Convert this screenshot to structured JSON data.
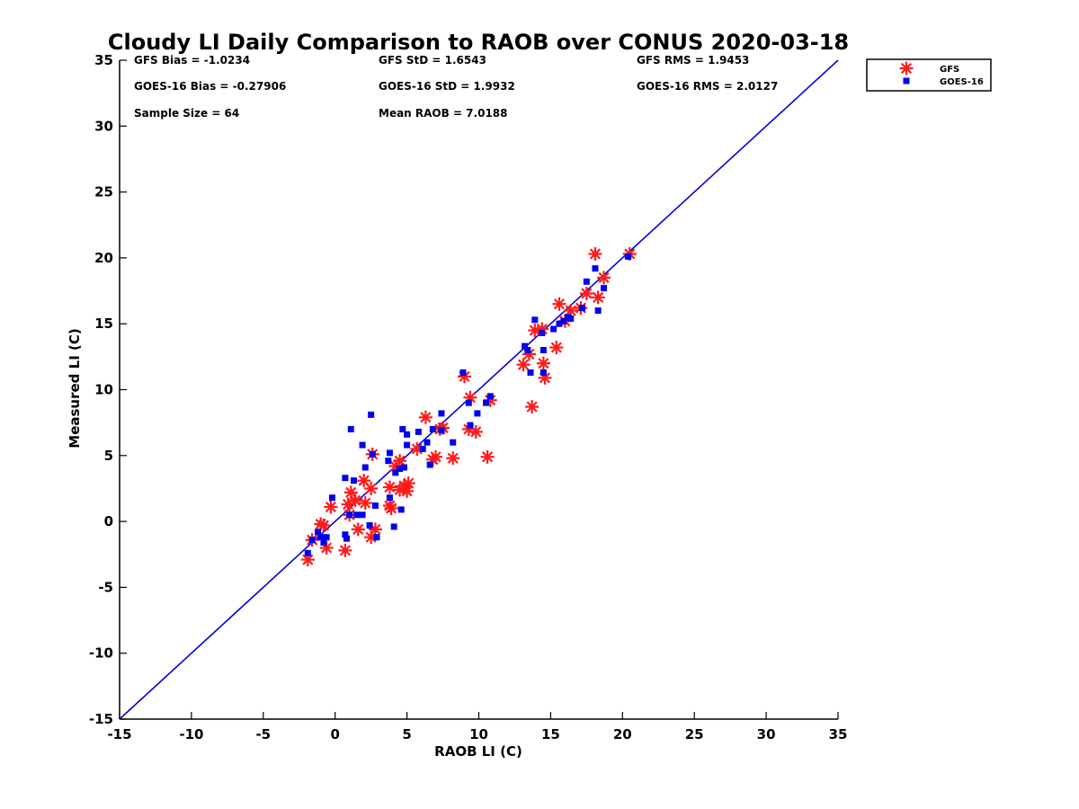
{
  "chart_data": {
    "type": "scatter",
    "title": "Cloudy LI Daily Comparison to RAOB over CONUS 2020-03-18",
    "xlabel": "RAOB LI (C)",
    "ylabel": "Measured LI (C)",
    "xlim": [
      -15,
      35
    ],
    "ylim": [
      -15,
      35
    ],
    "xticks": [
      -15,
      -10,
      -5,
      0,
      5,
      10,
      15,
      20,
      25,
      30,
      35
    ],
    "yticks": [
      -15,
      -10,
      -5,
      0,
      5,
      10,
      15,
      20,
      25,
      30,
      35
    ],
    "grid": false,
    "legend_position": "top-right, outside plot",
    "reference_line": {
      "from": [
        -15,
        -15
      ],
      "to": [
        35,
        35
      ],
      "color": "#0000dd"
    },
    "stats": [
      [
        "GFS Bias = -1.0234",
        "GFS StD = 1.6543",
        "GFS RMS = 1.9453"
      ],
      [
        "GOES-16 Bias = -0.27906",
        "GOES-16 StD = 1.9932",
        "GOES-16 RMS = 2.0127"
      ],
      [
        "Sample Size = 64",
        "Mean RAOB = 7.0188",
        ""
      ]
    ],
    "series": [
      {
        "name": "GFS",
        "marker": "asterisk",
        "color": "#ff1a1a",
        "x": [
          -1.9,
          -1.6,
          -1.0,
          -0.8,
          -0.6,
          -0.3,
          0.7,
          0.9,
          1.0,
          1.1,
          1.4,
          1.6,
          2.0,
          2.1,
          2.5,
          2.5,
          2.6,
          2.8,
          3.8,
          3.8,
          3.9,
          4.2,
          4.5,
          4.5,
          4.8,
          5.0,
          5.1,
          5.7,
          6.3,
          6.8,
          7.0,
          7.3,
          7.5,
          8.2,
          9.0,
          9.3,
          9.4,
          9.8,
          10.6,
          10.8,
          13.1,
          13.5,
          13.7,
          13.9,
          14.4,
          14.5,
          14.6,
          15.4,
          15.6,
          16.0,
          16.4,
          17.1,
          17.5,
          18.1,
          18.3,
          18.7,
          20.5
        ],
        "y": [
          -2.9,
          -1.4,
          -0.2,
          -0.3,
          -2.0,
          1.1,
          -2.2,
          1.3,
          0.5,
          2.2,
          1.6,
          -0.6,
          3.1,
          1.4,
          -1.2,
          2.5,
          5.1,
          -0.6,
          1.2,
          2.6,
          1.0,
          4.2,
          2.4,
          4.6,
          2.7,
          2.3,
          2.9,
          5.5,
          7.9,
          4.7,
          4.9,
          7.0,
          7.1,
          4.8,
          11.0,
          7.0,
          9.4,
          6.8,
          4.9,
          9.2,
          11.9,
          12.7,
          8.7,
          14.5,
          14.6,
          12.0,
          10.9,
          13.2,
          16.5,
          15.2,
          16.0,
          16.2,
          17.3,
          20.3,
          17.0,
          18.5,
          20.3
        ]
      },
      {
        "name": "GOES-16",
        "marker": "square",
        "color": "#0000ee",
        "x": [
          -1.9,
          -1.6,
          -1.2,
          -1.0,
          -0.8,
          -0.6,
          -0.2,
          0.7,
          0.7,
          0.8,
          1.0,
          1.1,
          1.3,
          1.5,
          1.9,
          1.9,
          2.1,
          2.4,
          2.5,
          2.6,
          2.8,
          2.9,
          3.7,
          3.8,
          3.8,
          4.1,
          4.2,
          4.5,
          4.6,
          4.7,
          4.8,
          5.0,
          5.0,
          5.8,
          6.1,
          6.4,
          6.6,
          6.8,
          7.4,
          7.4,
          8.2,
          8.9,
          9.3,
          9.4,
          9.9,
          10.5,
          10.8,
          13.2,
          13.4,
          13.6,
          13.9,
          14.4,
          14.5,
          14.5,
          15.2,
          15.6,
          15.9,
          16.2,
          16.4,
          17.2,
          17.5,
          18.1,
          18.3,
          18.7,
          20.4
        ],
        "y": [
          -2.4,
          -1.4,
          -0.8,
          -1.2,
          -1.6,
          -1.2,
          1.8,
          -1.0,
          3.3,
          -1.3,
          0.5,
          7.0,
          3.1,
          0.5,
          5.8,
          0.5,
          4.1,
          -0.3,
          8.1,
          5.1,
          1.2,
          -1.2,
          4.6,
          5.2,
          1.8,
          -0.4,
          3.7,
          4.0,
          0.9,
          7.0,
          4.1,
          6.6,
          5.8,
          6.8,
          5.5,
          6.0,
          4.3,
          7.0,
          6.9,
          8.2,
          6.0,
          11.3,
          9.0,
          7.3,
          8.2,
          9.0,
          9.5,
          13.3,
          13.0,
          11.3,
          15.3,
          14.3,
          13.0,
          11.3,
          14.6,
          15.0,
          15.2,
          15.5,
          15.4,
          16.2,
          18.2,
          19.2,
          16.0,
          17.7,
          20.1
        ]
      }
    ]
  }
}
